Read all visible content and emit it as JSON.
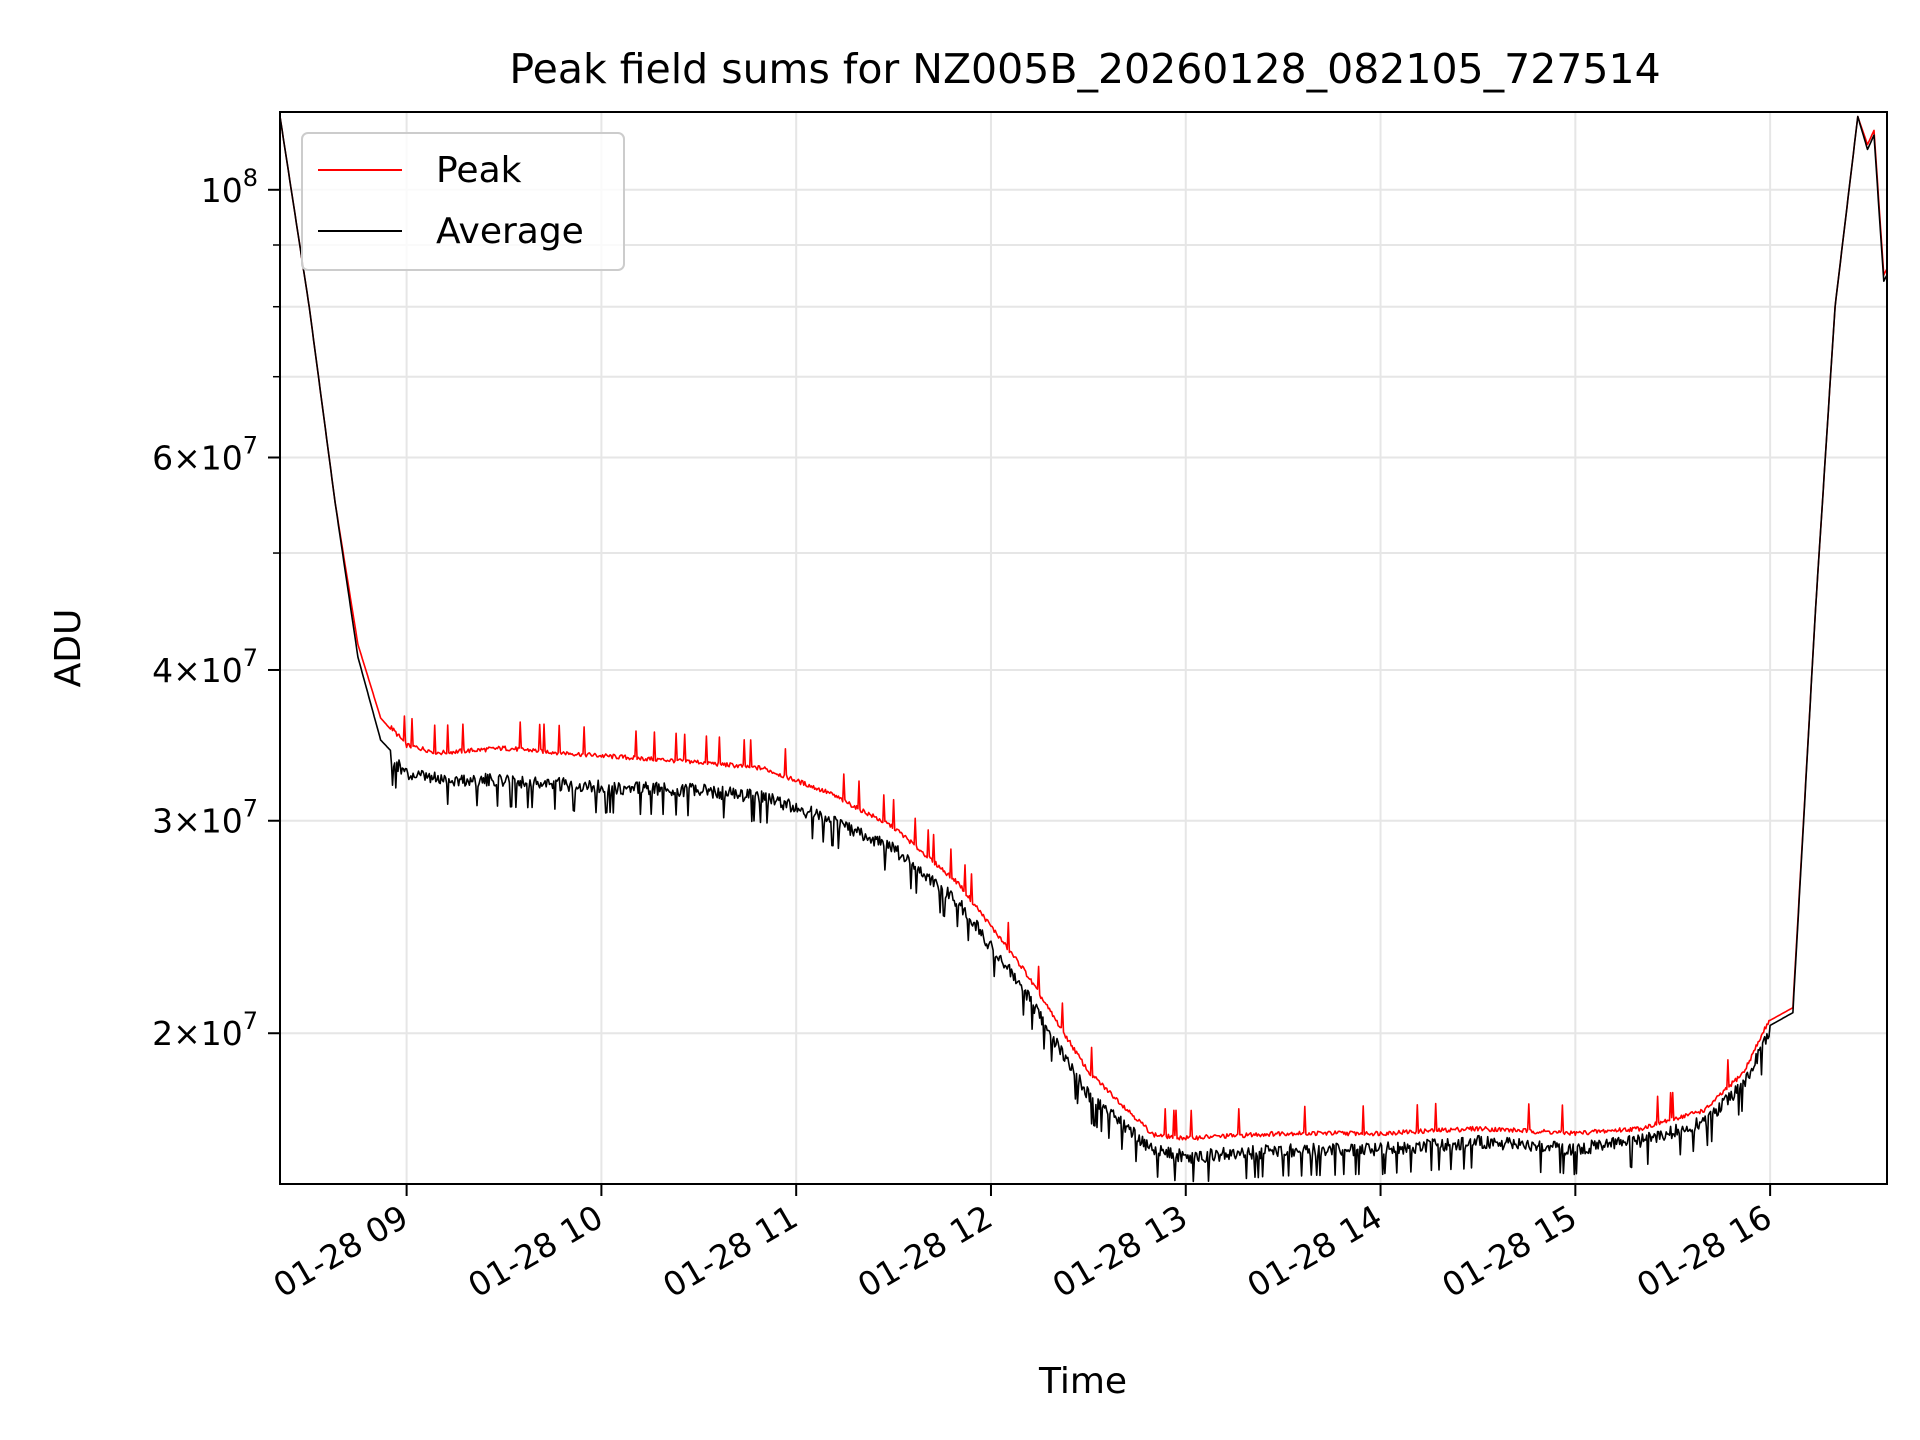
{
  "chart_data": {
    "type": "line",
    "title": "Peak field sums for NZ005B_20260128_082105_727514",
    "xlabel": "Time",
    "ylabel": "ADU",
    "y_scale": "log",
    "grid": true,
    "legend_position": "top-left",
    "xlim": [
      "2026-01-28 08:21",
      "2026-01-28 16:36"
    ],
    "ylim": [
      15000000,
      116000000
    ],
    "x_ticks": [
      {
        "value": "2026-01-28 09:00",
        "label": "01-28 09"
      },
      {
        "value": "2026-01-28 10:00",
        "label": "01-28 10"
      },
      {
        "value": "2026-01-28 11:00",
        "label": "01-28 11"
      },
      {
        "value": "2026-01-28 12:00",
        "label": "01-28 12"
      },
      {
        "value": "2026-01-28 13:00",
        "label": "01-28 13"
      },
      {
        "value": "2026-01-28 14:00",
        "label": "01-28 14"
      },
      {
        "value": "2026-01-28 15:00",
        "label": "01-28 15"
      },
      {
        "value": "2026-01-28 16:00",
        "label": "01-28 16"
      }
    ],
    "y_ticks": [
      {
        "value": 20000000,
        "base": "2",
        "exp": "7"
      },
      {
        "value": 30000000,
        "base": "3",
        "exp": "7"
      },
      {
        "value": 40000000,
        "base": "4",
        "exp": "7"
      },
      {
        "value": 60000000,
        "base": "6",
        "exp": "7"
      },
      {
        "value": 100000000,
        "base": "10",
        "exp": "8"
      }
    ],
    "y_minor_ticks": [
      50000000,
      70000000,
      80000000,
      90000000
    ],
    "series": [
      {
        "name": "Peak",
        "color": "#ff0000",
        "points": [
          [
            "2026-01-28 08:21",
            115000000
          ],
          [
            "2026-01-28 08:30",
            80000000
          ],
          [
            "2026-01-28 08:38",
            55000000
          ],
          [
            "2026-01-28 08:45",
            42000000
          ],
          [
            "2026-01-28 08:52",
            36500000
          ],
          [
            "2026-01-28 09:00",
            34500000
          ],
          [
            "2026-01-28 09:10",
            34000000
          ],
          [
            "2026-01-28 09:30",
            34300000
          ],
          [
            "2026-01-28 10:00",
            33800000
          ],
          [
            "2026-01-28 10:30",
            33400000
          ],
          [
            "2026-01-28 10:50",
            33000000
          ],
          [
            "2026-01-28 11:10",
            31500000
          ],
          [
            "2026-01-28 11:30",
            29500000
          ],
          [
            "2026-01-28 11:50",
            26500000
          ],
          [
            "2026-01-28 12:10",
            22500000
          ],
          [
            "2026-01-28 12:30",
            18500000
          ],
          [
            "2026-01-28 12:50",
            16400000
          ],
          [
            "2026-01-28 13:00",
            16300000
          ],
          [
            "2026-01-28 13:30",
            16450000
          ],
          [
            "2026-01-28 14:00",
            16450000
          ],
          [
            "2026-01-28 14:30",
            16600000
          ],
          [
            "2026-01-28 15:00",
            16450000
          ],
          [
            "2026-01-28 15:20",
            16600000
          ],
          [
            "2026-01-28 15:40",
            17200000
          ],
          [
            "2026-01-28 15:52",
            18500000
          ],
          [
            "2026-01-28 16:00",
            20500000
          ],
          [
            "2026-01-28 16:07",
            21000000
          ],
          [
            "2026-01-28 16:14",
            45000000
          ],
          [
            "2026-01-28 16:20",
            80000000
          ],
          [
            "2026-01-28 16:27",
            115000000
          ],
          [
            "2026-01-28 16:30",
            109000000
          ],
          [
            "2026-01-28 16:32",
            112000000
          ],
          [
            "2026-01-28 16:35",
            85000000
          ],
          [
            "2026-01-28 16:36",
            86000000
          ]
        ]
      },
      {
        "name": "Average",
        "color": "#000000",
        "points": [
          [
            "2026-01-28 08:21",
            115000000
          ],
          [
            "2026-01-28 08:30",
            80000000
          ],
          [
            "2026-01-28 08:38",
            55000000
          ],
          [
            "2026-01-28 08:45",
            41000000
          ],
          [
            "2026-01-28 08:52",
            35000000
          ],
          [
            "2026-01-28 09:00",
            33200000
          ],
          [
            "2026-01-28 09:10",
            32900000
          ],
          [
            "2026-01-28 09:30",
            32800000
          ],
          [
            "2026-01-28 10:00",
            32400000
          ],
          [
            "2026-01-28 10:30",
            32200000
          ],
          [
            "2026-01-28 10:50",
            31800000
          ],
          [
            "2026-01-28 11:10",
            30500000
          ],
          [
            "2026-01-28 11:30",
            28800000
          ],
          [
            "2026-01-28 11:50",
            26000000
          ],
          [
            "2026-01-28 12:10",
            22000000
          ],
          [
            "2026-01-28 12:30",
            18000000
          ],
          [
            "2026-01-28 12:50",
            16200000
          ],
          [
            "2026-01-28 13:00",
            16000000
          ],
          [
            "2026-01-28 13:30",
            16200000
          ],
          [
            "2026-01-28 14:00",
            16250000
          ],
          [
            "2026-01-28 14:30",
            16450000
          ],
          [
            "2026-01-28 15:00",
            16250000
          ],
          [
            "2026-01-28 15:20",
            16500000
          ],
          [
            "2026-01-28 15:40",
            17100000
          ],
          [
            "2026-01-28 15:52",
            18400000
          ],
          [
            "2026-01-28 16:00",
            20300000
          ],
          [
            "2026-01-28 16:07",
            20800000
          ],
          [
            "2026-01-28 16:14",
            45000000
          ],
          [
            "2026-01-28 16:20",
            80000000
          ],
          [
            "2026-01-28 16:27",
            115000000
          ],
          [
            "2026-01-28 16:30",
            108000000
          ],
          [
            "2026-01-28 16:32",
            111000000
          ],
          [
            "2026-01-28 16:35",
            84000000
          ],
          [
            "2026-01-28 16:36",
            85000000
          ]
        ]
      }
    ]
  }
}
